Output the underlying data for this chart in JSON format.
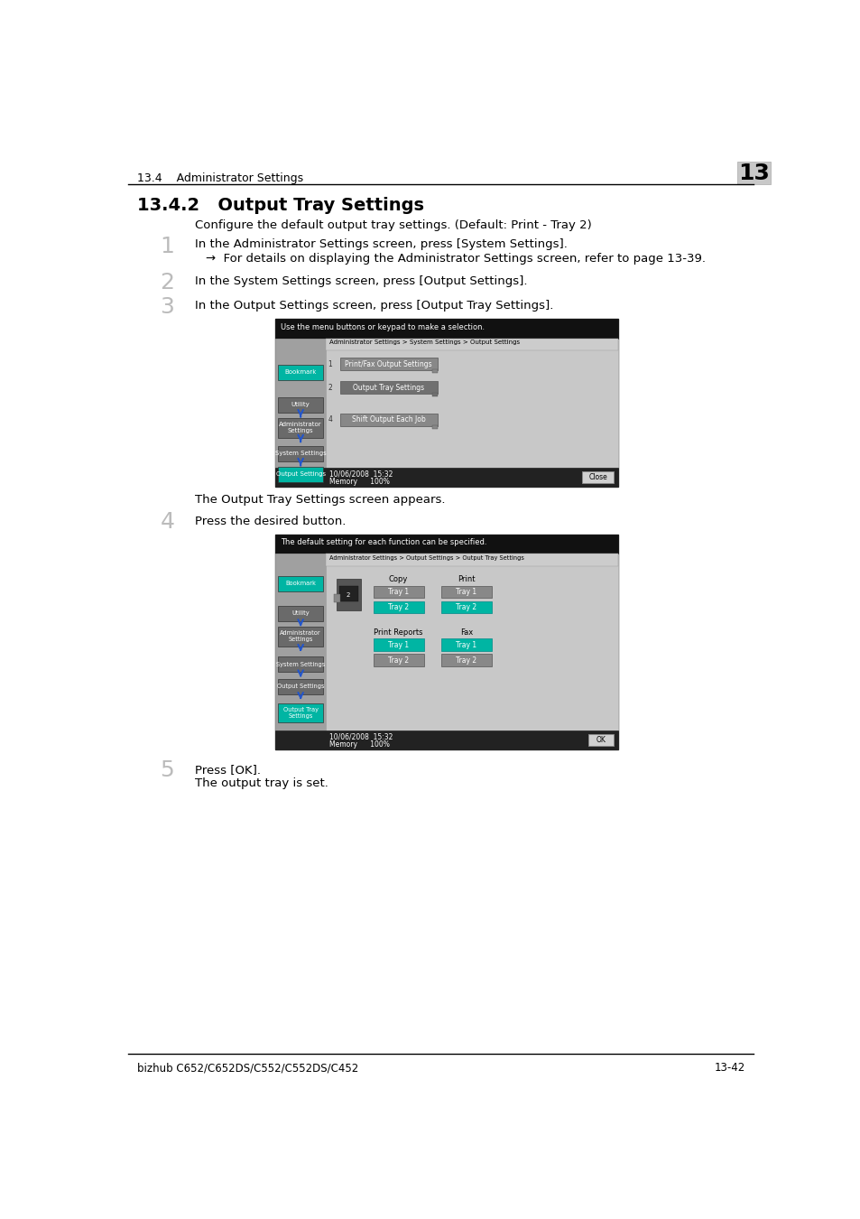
{
  "page_bg": "#ffffff",
  "header_text": "13.4    Administrator Settings",
  "header_num": "13",
  "header_num_bg": "#c8c8c8",
  "section_title": "13.4.2   Output Tray Settings",
  "description": "Configure the default output tray settings. (Default: Print - Tray 2)",
  "step1_num": "1",
  "step1_text": "In the Administrator Settings screen, press [System Settings].",
  "step1_arrow": "→  For details on displaying the Administrator Settings screen, refer to page 13-39.",
  "step2_num": "2",
  "step2_text": "In the System Settings screen, press [Output Settings].",
  "step3_num": "3",
  "step3_text": "In the Output Settings screen, press [Output Tray Settings].",
  "screen1_top_text": "Use the menu buttons or keypad to make a selection.",
  "screen1_breadcrumb": "Administrator Settings > System Settings > Output Settings",
  "screen1_btn1_num": "1",
  "screen1_btn1_label": "Print/Fax Output Settings",
  "screen1_btn2_num": "2",
  "screen1_btn2_label": "Output Tray Settings",
  "screen1_btn4_num": "4",
  "screen1_btn4_label": "Shift Output Each Job",
  "screen1_sidebar_btns": [
    "Bookmark",
    "Utility",
    "Administrator\nSettings",
    "System Settings",
    "Output Settings"
  ],
  "screen1_sidebar_active": [
    0,
    4
  ],
  "screen1_close_label": "Close",
  "screen1_datetime": "10/06/2008  15:32",
  "screen1_memory": "Memory      100%",
  "between_text": "The Output Tray Settings screen appears.",
  "step4_num": "4",
  "step4_text": "Press the desired button.",
  "screen2_top_text": "The default setting for each function can be specified.",
  "screen2_breadcrumb": "Administrator Settings > Output Settings > Output Tray Settings",
  "screen2_sidebar_btns": [
    "Bookmark",
    "Utility",
    "Administrator\nSettings",
    "System Settings",
    "Output Settings",
    "Output Tray\nSettings"
  ],
  "screen2_sidebar_active": [
    0,
    5
  ],
  "screen2_copy_label": "Copy",
  "screen2_print_label": "Print",
  "screen2_copy_tray1": "Tray 1",
  "screen2_copy_tray2": "Tray 2",
  "screen2_print_tray1": "Tray 1",
  "screen2_print_tray2": "Tray 2",
  "screen2_print_reports_label": "Print Reports",
  "screen2_fax_label": "Fax",
  "screen2_pr_tray1": "Tray 1",
  "screen2_pr_tray2": "Tray 2",
  "screen2_fax_tray1": "Tray 1",
  "screen2_fax_tray2": "Tray 2",
  "screen2_ok_label": "OK",
  "screen2_datetime": "10/06/2008  15:32",
  "screen2_memory": "Memory      100%",
  "step5_num": "5",
  "step5_text": "Press [OK].",
  "step5_sub": "The output tray is set.",
  "footer_left": "bizhub C652/C652DS/C552/C552DS/C452",
  "footer_right": "13-42",
  "teal_color": "#00b5a3",
  "dark_btn_color": "#6a6a6a",
  "sidebar_bg": "#a0a0a0",
  "screen_bg": "#b8b8b8",
  "screen_black": "#111111",
  "breadcrumb_bg": "#cccccc",
  "btn_gray": "#888888",
  "btn_dark": "#707070",
  "close_btn_bg": "#d0d0d0",
  "bottom_bar_bg": "#222222"
}
